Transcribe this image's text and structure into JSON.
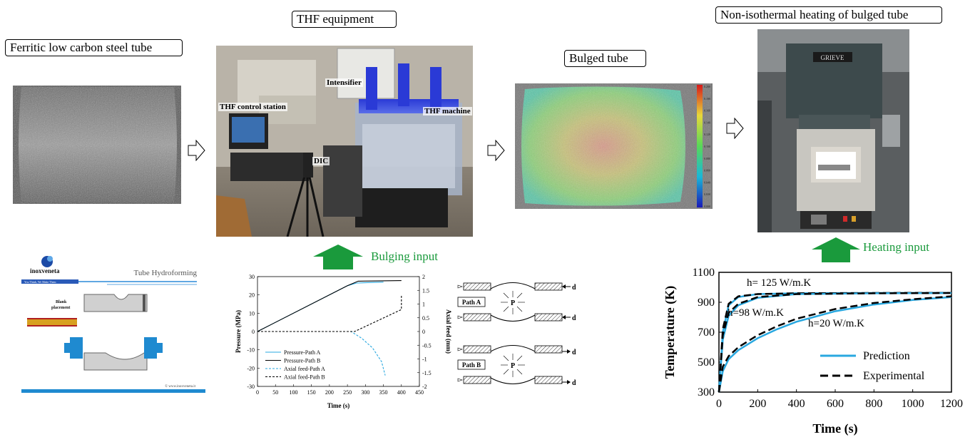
{
  "labels": {
    "ferritic": "Ferritic low carbon steel tube",
    "thf_equipment": "THF equipment",
    "bulged_tube": "Bulged tube",
    "non_iso": "Non-isothermal heating of bulged tube",
    "bulging_input": "Bulging input",
    "heating_input": "Heating input"
  },
  "thf_photo": {
    "intensifier": "Intensifier",
    "control_station": "THF control station",
    "machine": "THF machine",
    "dic": "DIC"
  },
  "furnace_brand": "GRIEVE",
  "colorbar_ticks": [
    "0.200",
    "0.180",
    "0.160",
    "0.140",
    "0.120",
    "0.100",
    "0.080",
    "0.060",
    "0.040",
    "0.020",
    "0.000"
  ],
  "inox": {
    "brand": "inoxveneta",
    "title": "Tube Hydroforming",
    "tagline": "You Think, We Make Them",
    "blank": "Blank\nplacement",
    "website": "© www.inoxveneta.it"
  },
  "paths": {
    "path_a": "Path A",
    "path_b": "Path B",
    "p": "P",
    "d": "d"
  },
  "chart_data": [
    {
      "type": "line",
      "xlabel": "Time (s)",
      "ylabel": "Pressure (MPa)",
      "y2label": "Axial feed (mm)",
      "xlim": [
        0,
        450
      ],
      "ylim": [
        -30,
        30
      ],
      "y2lim": [
        -2,
        2
      ],
      "xticks": [
        "0",
        "50",
        "100",
        "150",
        "200",
        "250",
        "300",
        "350",
        "400",
        "450"
      ],
      "yticks": [
        "-30",
        "-20",
        "-10",
        "0",
        "10",
        "20",
        "30"
      ],
      "y2ticks": [
        "-2",
        "-1.5",
        "-1",
        "-0.5",
        "0",
        "0.5",
        "1",
        "1.5",
        "2"
      ],
      "series": [
        {
          "name": "Pressure-Path A",
          "axis": "left",
          "style": "solid",
          "color": "#29a8e0",
          "x": [
            0,
            250,
            275,
            350
          ],
          "y": [
            0,
            25,
            26.5,
            27
          ]
        },
        {
          "name": "Pressure-Path B",
          "axis": "left",
          "style": "solid",
          "color": "#000000",
          "x": [
            0,
            250,
            280,
            400
          ],
          "y": [
            0,
            25,
            27.5,
            27.8
          ]
        },
        {
          "name": "Axial feed-Path A",
          "axis": "right",
          "style": "dashed",
          "color": "#29a8e0",
          "x": [
            0,
            260,
            290,
            320,
            345,
            355
          ],
          "y": [
            0,
            0,
            -0.25,
            -0.6,
            -1.1,
            -1.6
          ]
        },
        {
          "name": "Axial feed-Path B",
          "axis": "right",
          "style": "dashed",
          "color": "#000000",
          "x": [
            0,
            270,
            400,
            400
          ],
          "y": [
            0,
            0,
            0.8,
            1.3
          ]
        }
      ]
    },
    {
      "type": "line",
      "xlabel": "Time (s)",
      "ylabel": "Temperature (K)",
      "xlim": [
        0,
        1200
      ],
      "ylim": [
        300,
        1100
      ],
      "xticks": [
        "0",
        "200",
        "400",
        "600",
        "800",
        "1000",
        "1200"
      ],
      "yticks": [
        "300",
        "500",
        "700",
        "900",
        "1100"
      ],
      "legend": [
        {
          "name": "Prediction",
          "style": "solid",
          "color": "#29a8e0"
        },
        {
          "name": "Experimental",
          "style": "dashed",
          "color": "#000000"
        }
      ],
      "annotations": [
        "h= 125 W/m.K",
        "h=98 W/m.K",
        "h=20 W/m.K"
      ],
      "series": [
        {
          "name": "h=125 Prediction",
          "style": "solid",
          "color": "#29a8e0",
          "x": [
            0,
            20,
            50,
            100,
            200,
            400,
            800,
            1200
          ],
          "y": [
            300,
            700,
            880,
            935,
            955,
            960,
            962,
            963
          ]
        },
        {
          "name": "h=125 Experimental",
          "style": "dashed",
          "color": "#000000",
          "x": [
            0,
            20,
            50,
            100,
            200,
            400,
            800,
            1200
          ],
          "y": [
            300,
            720,
            890,
            940,
            955,
            960,
            962,
            963
          ]
        },
        {
          "name": "h=98 Prediction",
          "style": "solid",
          "color": "#29a8e0",
          "x": [
            0,
            20,
            50,
            100,
            200,
            400,
            800,
            1200
          ],
          "y": [
            300,
            650,
            810,
            880,
            930,
            955,
            960,
            962
          ]
        },
        {
          "name": "h=98 Experimental",
          "style": "dashed",
          "color": "#000000",
          "x": [
            0,
            20,
            50,
            100,
            200,
            400,
            800,
            1200
          ],
          "y": [
            300,
            680,
            830,
            890,
            935,
            955,
            960,
            962
          ]
        },
        {
          "name": "h=20 Prediction",
          "style": "solid",
          "color": "#29a8e0",
          "x": [
            0,
            20,
            50,
            100,
            200,
            300,
            400,
            600,
            800,
            1000,
            1200
          ],
          "y": [
            300,
            440,
            520,
            580,
            660,
            720,
            770,
            840,
            885,
            915,
            935
          ]
        },
        {
          "name": "h=20 Experimental",
          "style": "dashed",
          "color": "#000000",
          "x": [
            0,
            20,
            50,
            100,
            200,
            300,
            400,
            600,
            800,
            1000,
            1200
          ],
          "y": [
            300,
            470,
            540,
            600,
            680,
            740,
            790,
            855,
            895,
            920,
            940
          ]
        }
      ]
    }
  ]
}
